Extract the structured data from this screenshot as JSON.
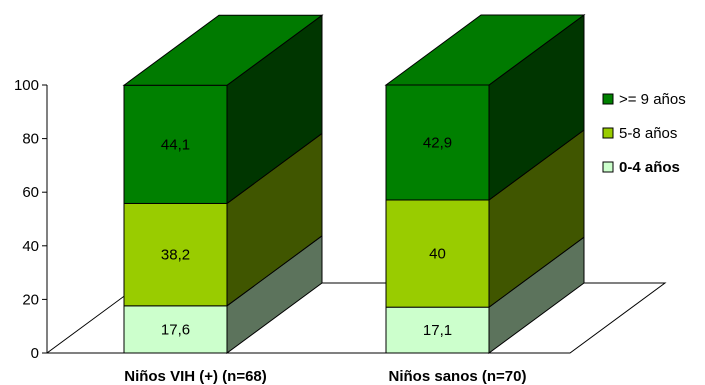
{
  "chart_data": {
    "type": "bar",
    "stacked": true,
    "three_d": true,
    "categories": [
      "Niños VIH (+)  (n=68)",
      "Niños sanos  (n=70)"
    ],
    "series": [
      {
        "name": "0-4 años",
        "values": [
          17.6,
          17.1
        ],
        "labels": [
          "17,6",
          "17,1"
        ],
        "color": "#ccffcc"
      },
      {
        "name": "5-8 años",
        "values": [
          38.2,
          40
        ],
        "labels": [
          "38,2",
          "40"
        ],
        "color": "#99cc00"
      },
      {
        "name": ">= 9 años",
        "values": [
          44.1,
          42.9
        ],
        "labels": [
          "44,1",
          "42,9"
        ],
        "color": "#008000"
      }
    ],
    "yticks": [
      "0",
      "20",
      "40",
      "60",
      "80",
      "100"
    ],
    "ylim": [
      0,
      100
    ],
    "legend_position": "right",
    "legend_order": [
      ">= 9 años",
      "5-8 años",
      "0-4 años"
    ],
    "legend_bold": [
      "0-4 años"
    ],
    "grid": false
  }
}
